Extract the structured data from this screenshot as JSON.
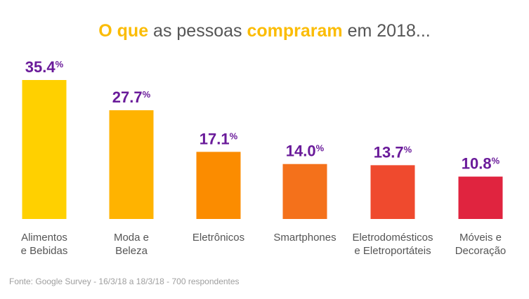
{
  "chart_data": {
    "type": "bar",
    "title_parts": [
      {
        "text": "O que",
        "accent": true
      },
      {
        "text": " as pessoas ",
        "accent": false
      },
      {
        "text": "compraram",
        "accent": true
      },
      {
        "text": " em 2018...",
        "accent": false
      }
    ],
    "categories": [
      [
        "Alimentos",
        "e Bebidas"
      ],
      [
        "Moda e",
        "Beleza"
      ],
      [
        "Eletrônicos"
      ],
      [
        "Smartphones"
      ],
      [
        "Eletrodomésticos",
        "e Eletroportáteis"
      ],
      [
        "Móveis e",
        "Decoração"
      ]
    ],
    "values": [
      35.4,
      27.7,
      17.1,
      14.0,
      13.7,
      10.8
    ],
    "value_labels": [
      "35.4",
      "27.7",
      "17.1",
      "14.0",
      "13.7",
      "10.8"
    ],
    "unit": "%",
    "bar_colors": [
      "#FFD000",
      "#FFB300",
      "#FB8C00",
      "#F4711B",
      "#EF4A2E",
      "#E0243F"
    ],
    "label_color": "#6A1B9A",
    "accent_color": "#FBBC05",
    "ylim": [
      0,
      35.4
    ],
    "grid": false,
    "legend": "none"
  },
  "footer": {
    "source": "Fonte: Google Survey - 16/3/18 a 18/3/18 - 700 respondentes"
  }
}
